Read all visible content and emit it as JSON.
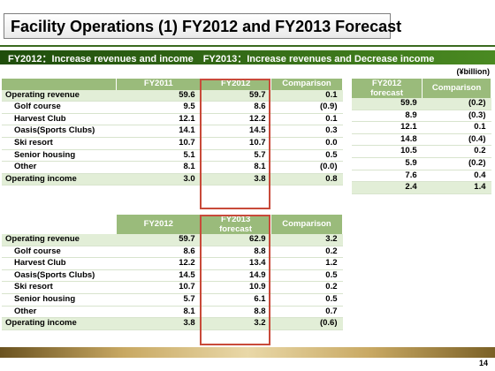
{
  "title": "Facility Operations (1) FY2012 and FY2013 Forecast",
  "subtitle": "FY2012：Increase revenues and income　FY2013：Increase revenues and Decrease income",
  "unit": "(¥billion)",
  "page_number": "14",
  "table1": {
    "headers": [
      "",
      "FY2011",
      "FY2012",
      "Comparison"
    ],
    "rows": [
      {
        "label": "Operating revenue",
        "v1": "59.6",
        "v2": "59.7",
        "v3": "0.1"
      },
      {
        "label": "Golf course",
        "v1": "9.5",
        "v2": "8.6",
        "v3": "(0.9)"
      },
      {
        "label": "Harvest Club",
        "v1": "12.1",
        "v2": "12.2",
        "v3": "0.1"
      },
      {
        "label": "Oasis(Sports Clubs)",
        "v1": "14.1",
        "v2": "14.5",
        "v3": "0.3"
      },
      {
        "label": "Ski resort",
        "v1": "10.7",
        "v2": "10.7",
        "v3": "0.0"
      },
      {
        "label": "Senior housing",
        "v1": "5.1",
        "v2": "5.7",
        "v3": "0.5"
      },
      {
        "label": "Other",
        "v1": "8.1",
        "v2": "8.1",
        "v3": "(0.0)"
      },
      {
        "label": "Operating income",
        "v1": "3.0",
        "v2": "3.8",
        "v3": "0.8"
      }
    ]
  },
  "table2": {
    "headers": [
      "FY2012 forecast",
      "Comparison"
    ],
    "rows": [
      {
        "v1": "59.9",
        "v2": "(0.2)"
      },
      {
        "v1": "8.9",
        "v2": "(0.3)"
      },
      {
        "v1": "12.1",
        "v2": "0.1"
      },
      {
        "v1": "14.8",
        "v2": "(0.4)"
      },
      {
        "v1": "10.5",
        "v2": "0.2"
      },
      {
        "v1": "5.9",
        "v2": "(0.2)"
      },
      {
        "v1": "7.6",
        "v2": "0.4"
      },
      {
        "v1": "2.4",
        "v2": "1.4"
      }
    ]
  },
  "table3": {
    "headers": [
      "",
      "FY2012",
      "FY2013 forecast",
      "Comparison"
    ],
    "rows": [
      {
        "label": "Operating revenue",
        "v1": "59.7",
        "v2": "62.9",
        "v3": "3.2"
      },
      {
        "label": "Golf course",
        "v1": "8.6",
        "v2": "8.8",
        "v3": "0.2"
      },
      {
        "label": "Harvest Club",
        "v1": "12.2",
        "v2": "13.4",
        "v3": "1.2"
      },
      {
        "label": "Oasis(Sports Clubs)",
        "v1": "14.5",
        "v2": "14.9",
        "v3": "0.5"
      },
      {
        "label": "Ski resort",
        "v1": "10.7",
        "v2": "10.9",
        "v3": "0.2"
      },
      {
        "label": "Senior housing",
        "v1": "5.7",
        "v2": "6.1",
        "v3": "0.5"
      },
      {
        "label": "Other",
        "v1": "8.1",
        "v2": "8.8",
        "v3": "0.7"
      },
      {
        "label": "Operating income",
        "v1": "3.8",
        "v2": "3.2",
        "v3": "(0.6)"
      }
    ]
  }
}
